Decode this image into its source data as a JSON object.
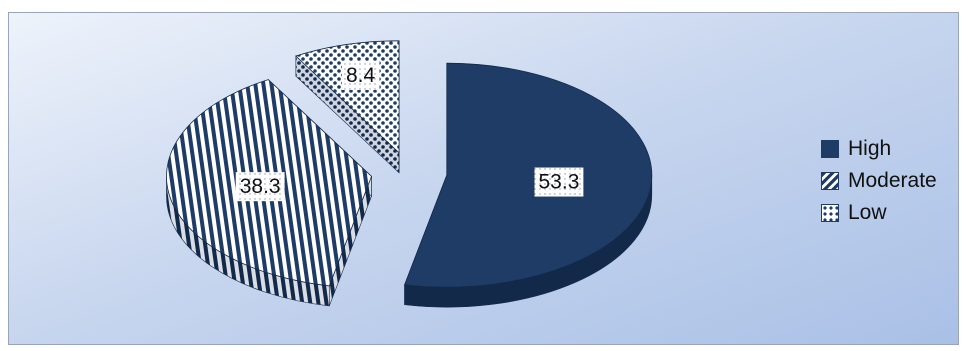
{
  "chart_data": {
    "type": "pie",
    "title": "",
    "three_d": true,
    "exploded": true,
    "legend_position": "right",
    "categories": [
      "High",
      "Moderate",
      "Low"
    ],
    "values": [
      53.3,
      38.3,
      8.4
    ],
    "colors": {
      "High": "#1f3c66",
      "Moderate": "#1f3c66",
      "Low": "#1f3c66",
      "background_top": "#eef3fb",
      "background_bottom": "#a9c0e6"
    },
    "patterns": {
      "High": "solid",
      "Moderate": "diagonal-stripes",
      "Low": "dots"
    },
    "data_labels": [
      "53.3",
      "38.3",
      "8.4"
    ]
  }
}
